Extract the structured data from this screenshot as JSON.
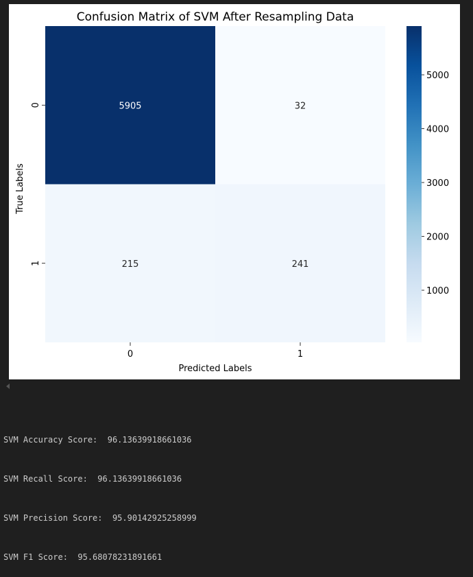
{
  "chart_data": {
    "type": "heatmap",
    "title": "Confusion Matrix of SVM After Resampling Data",
    "xlabel": "Predicted Labels",
    "ylabel": "True Labels",
    "x_categories": [
      "0",
      "1"
    ],
    "y_categories": [
      "0",
      "1"
    ],
    "matrix": [
      [
        5905,
        32
      ],
      [
        215,
        241
      ]
    ],
    "colormap": "Blues",
    "colorbar": {
      "range": [
        32,
        5905
      ],
      "ticks": [
        1000,
        2000,
        3000,
        4000,
        5000
      ]
    },
    "colors": {
      "min": "#f7fbff",
      "max": "#08306b"
    }
  },
  "output": {
    "lines": [
      "SVM Accuracy Score:  96.13639918661036",
      "SVM Recall Score:  96.13639918661036",
      "SVM Precision Score:  95.90142925258999",
      "SVM F1 Score:  95.68078231891661"
    ]
  },
  "icons": {
    "scroll_left": "chevron-left-icon"
  }
}
